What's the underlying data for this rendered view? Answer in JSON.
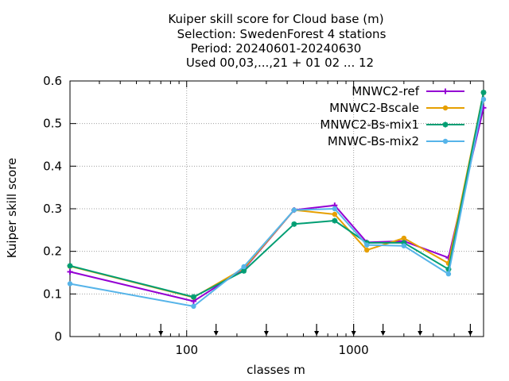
{
  "chart_data": {
    "type": "line",
    "title_lines": [
      "Kuiper skill score  for Cloud base (m)",
      "Selection: SwedenForest      4 stations",
      "Period: 20240601-20240630",
      "Used 00,03,...,21 + 01 02 ... 12"
    ],
    "xlabel": "classes m",
    "ylabel": "Kuiper skill score",
    "x_scale": "log",
    "xlim": [
      20,
      6000
    ],
    "ylim": [
      0,
      0.6
    ],
    "x_ticks": [
      100,
      1000
    ],
    "x_tick_labels": [
      "100",
      "1000"
    ],
    "y_ticks": [
      0,
      0.1,
      0.2,
      0.3,
      0.4,
      0.5,
      0.6
    ],
    "y_tick_labels": [
      "0",
      "0.1",
      "0.2",
      "0.3",
      "0.4",
      "0.5",
      "0.6"
    ],
    "grid": true,
    "legend_position": "top-right",
    "x": [
      20,
      110,
      220,
      440,
      770,
      1200,
      2000,
      3700,
      6000
    ],
    "series": [
      {
        "name": "MNWC2-ref",
        "color": "#9400d3",
        "marker": "plus",
        "values": [
          0.152,
          0.083,
          0.158,
          0.297,
          0.308,
          0.221,
          0.224,
          0.185,
          0.537
        ]
      },
      {
        "name": "MNWC2-Bscale",
        "color": "#e69f00",
        "marker": "circle",
        "values": [
          0.165,
          0.092,
          0.16,
          0.297,
          0.287,
          0.203,
          0.231,
          0.172,
          0.573
        ]
      },
      {
        "name": "MNWC2-Bs-mix1",
        "color": "#009e73",
        "marker": "star",
        "values": [
          0.166,
          0.093,
          0.154,
          0.264,
          0.272,
          0.22,
          0.22,
          0.158,
          0.573
        ]
      },
      {
        "name": "MNWC-Bs-mix2",
        "color": "#56b4e9",
        "marker": "circle",
        "values": [
          0.124,
          0.071,
          0.164,
          0.297,
          0.3,
          0.215,
          0.213,
          0.147,
          0.557
        ]
      }
    ],
    "class_limit_arrows": [
      70,
      150,
      300,
      600,
      1000,
      1500,
      2500,
      5000
    ]
  }
}
